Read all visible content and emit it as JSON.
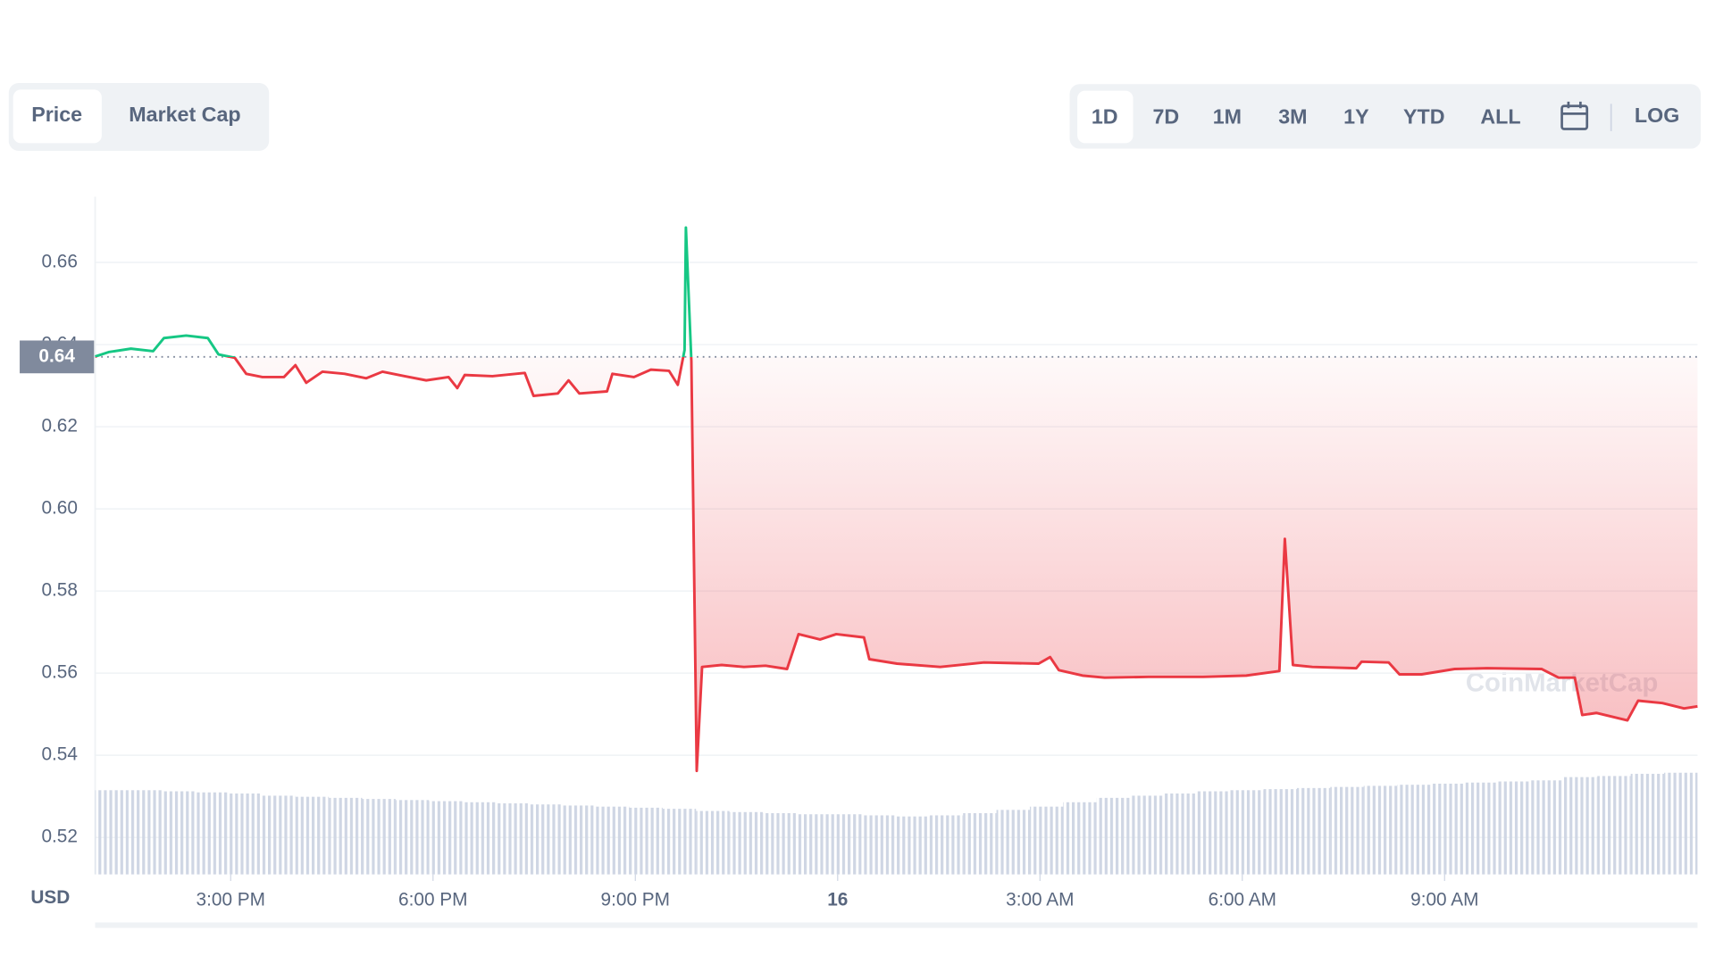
{
  "tabs": {
    "items": [
      "Price",
      "Market Cap"
    ],
    "active": 0
  },
  "ranges": {
    "items": [
      "1D",
      "7D",
      "1M",
      "3M",
      "1Y",
      "YTD",
      "ALL"
    ],
    "active": 0,
    "log": "LOG"
  },
  "chart_data": {
    "type": "line",
    "axis_label": "USD",
    "watermark": "CoinMarketCap",
    "up_color": "#16c784",
    "down_color": "#ea3943",
    "grid": true,
    "reference": {
      "value": 0.637,
      "label": "0.64"
    },
    "xlim": [
      12.99,
      36.75
    ],
    "ylim": [
      0.511,
      0.676
    ],
    "xticks": [
      {
        "value": 15,
        "label": "3:00 PM"
      },
      {
        "value": 18,
        "label": "6:00 PM"
      },
      {
        "value": 21,
        "label": "9:00 PM"
      },
      {
        "value": 24,
        "label": "16"
      },
      {
        "value": 27,
        "label": "3:00 AM"
      },
      {
        "value": 30,
        "label": "6:00 AM"
      },
      {
        "value": 33,
        "label": "9:00 AM"
      }
    ],
    "yticks": [
      0.52,
      0.54,
      0.56,
      0.58,
      {
        "value": 0.6,
        "label": "0.60"
      },
      0.62,
      0.64,
      0.66
    ],
    "x": [
      12.99,
      13.2,
      13.52,
      13.85,
      14.01,
      14.34,
      14.66,
      14.82,
      15.06,
      15.23,
      15.47,
      15.79,
      15.96,
      16.12,
      16.36,
      16.69,
      17.01,
      17.25,
      17.58,
      17.9,
      18.23,
      18.36,
      18.47,
      18.88,
      19.36,
      19.49,
      19.85,
      20.01,
      20.17,
      20.58,
      20.66,
      20.98,
      21.23,
      21.5,
      21.63,
      21.73,
      21.75,
      21.83,
      21.91,
      21.99,
      22.28,
      22.61,
      22.93,
      23.25,
      23.42,
      23.74,
      23.98,
      24.39,
      24.47,
      24.88,
      25.52,
      26.17,
      26.98,
      27.15,
      27.28,
      27.63,
      27.96,
      28.61,
      29.42,
      30.06,
      30.55,
      30.63,
      30.75,
      31.04,
      31.69,
      31.77,
      32.17,
      32.33,
      32.66,
      33.15,
      33.63,
      34.44,
      34.69,
      34.93,
      35.04,
      35.25,
      35.71,
      35.87,
      36.23,
      36.55,
      36.75
    ],
    "values": [
      0.6371,
      0.6382,
      0.639,
      0.6384,
      0.6416,
      0.6422,
      0.6416,
      0.6376,
      0.6368,
      0.6329,
      0.6321,
      0.6321,
      0.635,
      0.6307,
      0.6334,
      0.6329,
      0.6318,
      0.6334,
      0.6323,
      0.6313,
      0.6321,
      0.6294,
      0.6326,
      0.6323,
      0.6331,
      0.6275,
      0.6281,
      0.6313,
      0.6281,
      0.6286,
      0.6329,
      0.6321,
      0.6339,
      0.6336,
      0.6302,
      0.6387,
      0.6685,
      0.636,
      0.5362,
      0.5615,
      0.562,
      0.5615,
      0.5618,
      0.561,
      0.5695,
      0.5682,
      0.5695,
      0.5687,
      0.5634,
      0.5623,
      0.5615,
      0.5626,
      0.5623,
      0.5639,
      0.5607,
      0.5594,
      0.5589,
      0.5591,
      0.5591,
      0.5594,
      0.5605,
      0.5927,
      0.562,
      0.5615,
      0.5612,
      0.5628,
      0.5626,
      0.5597,
      0.5597,
      0.561,
      0.5612,
      0.561,
      0.5589,
      0.5589,
      0.5498,
      0.5503,
      0.5485,
      0.5533,
      0.5527,
      0.5514,
      0.5519
    ],
    "volume": {
      "color": "#cfd6e4",
      "values": [
        77,
        77,
        76,
        75,
        74,
        72,
        71,
        70,
        69,
        68,
        67,
        66,
        65,
        64,
        63,
        62,
        61,
        60,
        58,
        57,
        56,
        55,
        55,
        54,
        53,
        54,
        56,
        59,
        62,
        66,
        70,
        72,
        74,
        76,
        77,
        78,
        79,
        80,
        81,
        82,
        83,
        84,
        85,
        86,
        89,
        90,
        92,
        93
      ]
    }
  }
}
